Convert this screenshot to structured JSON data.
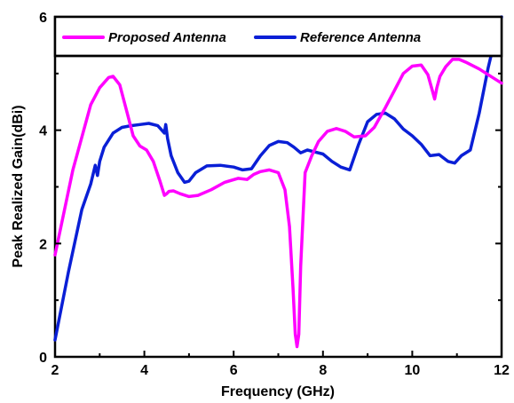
{
  "chart_data": {
    "type": "line",
    "xlabel": "Frequency (GHz)",
    "ylabel": "Peak Realized Gain(dBi)",
    "xlim": [
      2,
      12
    ],
    "ylim": [
      0,
      6
    ],
    "xticks": [
      2,
      4,
      6,
      8,
      10,
      12
    ],
    "yticks": [
      0,
      2,
      4,
      6
    ],
    "legend_position": "top",
    "series": [
      {
        "name": "Proposed Antenna",
        "color": "#ff00ff",
        "x": [
          2.0,
          2.4,
          2.8,
          3.0,
          3.2,
          3.3,
          3.45,
          3.6,
          3.75,
          3.9,
          4.05,
          4.2,
          4.35,
          4.45,
          4.5,
          4.55,
          4.65,
          4.8,
          5.0,
          5.2,
          5.5,
          5.8,
          6.1,
          6.3,
          6.45,
          6.6,
          6.8,
          7.0,
          7.15,
          7.25,
          7.33,
          7.38,
          7.42,
          7.46,
          7.5,
          7.6,
          7.75,
          7.9,
          8.1,
          8.3,
          8.5,
          8.7,
          8.95,
          9.15,
          9.4,
          9.6,
          9.8,
          10.0,
          10.2,
          10.35,
          10.45,
          10.5,
          10.55,
          10.62,
          10.75,
          10.9,
          11.05,
          11.2,
          11.5,
          11.8,
          12.0
        ],
        "y": [
          1.8,
          3.3,
          4.45,
          4.75,
          4.93,
          4.95,
          4.8,
          4.35,
          3.9,
          3.72,
          3.65,
          3.45,
          3.1,
          2.85,
          2.88,
          2.92,
          2.93,
          2.88,
          2.83,
          2.85,
          2.95,
          3.08,
          3.15,
          3.13,
          3.22,
          3.27,
          3.3,
          3.25,
          2.95,
          2.3,
          1.2,
          0.4,
          0.18,
          0.4,
          1.6,
          3.25,
          3.55,
          3.8,
          3.98,
          4.03,
          3.98,
          3.88,
          3.9,
          4.05,
          4.4,
          4.7,
          5.0,
          5.13,
          5.15,
          4.98,
          4.7,
          4.55,
          4.75,
          4.95,
          5.12,
          5.25,
          5.25,
          5.2,
          5.08,
          4.93,
          4.83
        ]
      },
      {
        "name": "Reference Antenna",
        "color": "#0a1fd6",
        "x": [
          2.0,
          2.3,
          2.6,
          2.8,
          2.9,
          2.95,
          3.0,
          3.1,
          3.3,
          3.5,
          3.7,
          3.9,
          4.1,
          4.3,
          4.45,
          4.48,
          4.52,
          4.6,
          4.75,
          4.9,
          5.0,
          5.15,
          5.4,
          5.7,
          6.0,
          6.2,
          6.4,
          6.6,
          6.8,
          7.0,
          7.2,
          7.35,
          7.5,
          7.65,
          7.8,
          8.0,
          8.2,
          8.4,
          8.6,
          8.8,
          9.0,
          9.2,
          9.4,
          9.6,
          9.8,
          10.0,
          10.2,
          10.4,
          10.6,
          10.8,
          10.95,
          11.1,
          11.3,
          11.5,
          11.7,
          11.85,
          12.0
        ],
        "y": [
          0.3,
          1.5,
          2.6,
          3.05,
          3.38,
          3.2,
          3.45,
          3.7,
          3.95,
          4.05,
          4.08,
          4.1,
          4.12,
          4.08,
          3.95,
          4.1,
          3.85,
          3.55,
          3.25,
          3.08,
          3.1,
          3.25,
          3.37,
          3.38,
          3.35,
          3.3,
          3.32,
          3.55,
          3.73,
          3.8,
          3.78,
          3.7,
          3.6,
          3.65,
          3.62,
          3.58,
          3.45,
          3.35,
          3.3,
          3.75,
          4.15,
          4.28,
          4.3,
          4.2,
          4.02,
          3.9,
          3.75,
          3.55,
          3.57,
          3.45,
          3.42,
          3.55,
          3.65,
          4.3,
          5.1,
          5.6,
          6.0
        ]
      }
    ]
  }
}
